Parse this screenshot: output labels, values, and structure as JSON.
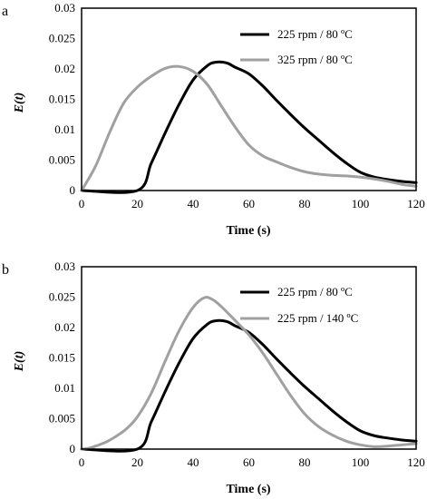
{
  "chart_data": [
    {
      "type": "line",
      "panel": "a",
      "xlabel": "Time (s)",
      "ylabel": "E(t)",
      "xlim": [
        0,
        120
      ],
      "ylim": [
        0,
        0.03
      ],
      "xticks": [
        0,
        20,
        40,
        60,
        80,
        100,
        120
      ],
      "yticks": [
        0,
        0.005,
        0.01,
        0.015,
        0.02,
        0.025,
        0.03
      ],
      "xtick_labels": [
        "0",
        "20",
        "40",
        "60",
        "80",
        "100",
        "120"
      ],
      "ytick_labels": [
        "0",
        "0.005",
        "0.01",
        "0.015",
        "0.02",
        "0.025",
        "0.03"
      ],
      "legend_position": "top-right",
      "series": [
        {
          "name": "225 rpm / 80 ºC",
          "color": "#000000",
          "x": [
            0,
            20,
            25,
            30,
            35,
            40,
            45,
            48,
            52,
            55,
            60,
            65,
            70,
            75,
            80,
            85,
            90,
            95,
            100,
            105,
            110,
            115,
            120
          ],
          "y": [
            0,
            0,
            0.0045,
            0.0095,
            0.0142,
            0.0182,
            0.0205,
            0.0211,
            0.021,
            0.0203,
            0.0192,
            0.0172,
            0.0148,
            0.0125,
            0.0103,
            0.0083,
            0.0063,
            0.0045,
            0.003,
            0.0022,
            0.0018,
            0.0015,
            0.0013
          ]
        },
        {
          "name": "325 rpm / 80 ºC",
          "color": "#a0a0a0",
          "x": [
            0,
            5,
            10,
            15,
            20,
            25,
            30,
            35,
            40,
            45,
            50,
            55,
            60,
            65,
            70,
            75,
            80,
            85,
            90,
            95,
            100,
            105,
            110,
            115,
            120
          ],
          "y": [
            0,
            0.004,
            0.0095,
            0.0143,
            0.017,
            0.0188,
            0.0201,
            0.0204,
            0.0196,
            0.0175,
            0.014,
            0.0105,
            0.0075,
            0.0057,
            0.0047,
            0.0038,
            0.0031,
            0.0027,
            0.0025,
            0.0024,
            0.0022,
            0.0019,
            0.0015,
            0.001,
            0.0007
          ]
        }
      ]
    },
    {
      "type": "line",
      "panel": "b",
      "xlabel": "Time (s)",
      "ylabel": "E(t)",
      "xlim": [
        0,
        120
      ],
      "ylim": [
        0,
        0.03
      ],
      "xticks": [
        0,
        20,
        40,
        60,
        80,
        100,
        120
      ],
      "yticks": [
        0,
        0.005,
        0.01,
        0.015,
        0.02,
        0.025,
        0.03
      ],
      "xtick_labels": [
        "0",
        "20",
        "40",
        "60",
        "80",
        "100",
        "120"
      ],
      "ytick_labels": [
        "0",
        "0.005",
        "0.01",
        "0.015",
        "0.02",
        "0.025",
        "0.03"
      ],
      "legend_position": "top-right",
      "series": [
        {
          "name": "225 rpm / 80 ºC",
          "color": "#000000",
          "x": [
            0,
            20,
            25,
            30,
            35,
            40,
            45,
            48,
            52,
            55,
            60,
            65,
            70,
            75,
            80,
            85,
            90,
            95,
            100,
            105,
            110,
            115,
            120
          ],
          "y": [
            0,
            0,
            0.0045,
            0.0095,
            0.0142,
            0.0182,
            0.0205,
            0.0211,
            0.021,
            0.0203,
            0.0192,
            0.0172,
            0.0148,
            0.0125,
            0.0103,
            0.0083,
            0.0063,
            0.0045,
            0.003,
            0.0022,
            0.0018,
            0.0015,
            0.0013
          ]
        },
        {
          "name": "225 rpm / 140 ºC",
          "color": "#a0a0a0",
          "x": [
            0,
            3,
            8,
            12,
            16,
            20,
            25,
            30,
            35,
            40,
            44,
            47,
            50,
            55,
            60,
            65,
            70,
            75,
            80,
            85,
            90,
            95,
            100,
            105,
            110,
            115,
            120
          ],
          "y": [
            0,
            0.0002,
            0.001,
            0.002,
            0.0033,
            0.0053,
            0.0092,
            0.0145,
            0.0195,
            0.0233,
            0.0249,
            0.0246,
            0.0235,
            0.0212,
            0.0188,
            0.0158,
            0.0123,
            0.0088,
            0.0058,
            0.0037,
            0.0023,
            0.0013,
            0.0007,
            0.0004,
            0.0005,
            0.0007,
            0.0009
          ]
        }
      ]
    }
  ]
}
